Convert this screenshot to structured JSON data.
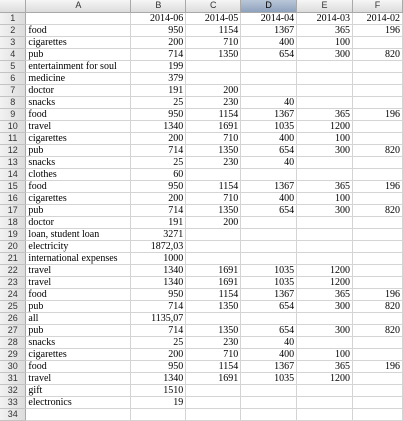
{
  "columns": [
    "A",
    "B",
    "C",
    "D",
    "E",
    "F"
  ],
  "selected_column": "D",
  "rows": [
    [
      "",
      "2014-06",
      "2014-05",
      "2014-04",
      "2014-03",
      "2014-02"
    ],
    [
      "food",
      "950",
      "1154",
      "1367",
      "365",
      "196"
    ],
    [
      "cigarettes",
      "200",
      "710",
      "400",
      "100",
      ""
    ],
    [
      "pub",
      "714",
      "1350",
      "654",
      "300",
      "820"
    ],
    [
      "entertainment for soul",
      "199",
      "",
      "",
      "",
      ""
    ],
    [
      "medicine",
      "379",
      "",
      "",
      "",
      ""
    ],
    [
      "doctor",
      "191",
      "200",
      "",
      "",
      ""
    ],
    [
      "snacks",
      "25",
      "230",
      "40",
      "",
      ""
    ],
    [
      "food",
      "950",
      "1154",
      "1367",
      "365",
      "196"
    ],
    [
      "travel",
      "1340",
      "1691",
      "1035",
      "1200",
      ""
    ],
    [
      "cigarettes",
      "200",
      "710",
      "400",
      "100",
      ""
    ],
    [
      "pub",
      "714",
      "1350",
      "654",
      "300",
      "820"
    ],
    [
      "snacks",
      "25",
      "230",
      "40",
      "",
      ""
    ],
    [
      "clothes",
      "60",
      "",
      "",
      "",
      ""
    ],
    [
      "food",
      "950",
      "1154",
      "1367",
      "365",
      "196"
    ],
    [
      "cigarettes",
      "200",
      "710",
      "400",
      "100",
      ""
    ],
    [
      "pub",
      "714",
      "1350",
      "654",
      "300",
      "820"
    ],
    [
      "doctor",
      "191",
      "200",
      "",
      "",
      ""
    ],
    [
      "loan, student loan",
      "3271",
      "",
      "",
      "",
      ""
    ],
    [
      "electricity",
      "1872,03",
      "",
      "",
      "",
      ""
    ],
    [
      "international expenses",
      "1000",
      "",
      "",
      "",
      ""
    ],
    [
      "travel",
      "1340",
      "1691",
      "1035",
      "1200",
      ""
    ],
    [
      "travel",
      "1340",
      "1691",
      "1035",
      "1200",
      ""
    ],
    [
      "food",
      "950",
      "1154",
      "1367",
      "365",
      "196"
    ],
    [
      "pub",
      "714",
      "1350",
      "654",
      "300",
      "820"
    ],
    [
      "all",
      "1135,07",
      "",
      "",
      "",
      ""
    ],
    [
      "pub",
      "714",
      "1350",
      "654",
      "300",
      "820"
    ],
    [
      "snacks",
      "25",
      "230",
      "40",
      "",
      ""
    ],
    [
      "cigarettes",
      "200",
      "710",
      "400",
      "100",
      ""
    ],
    [
      "food",
      "950",
      "1154",
      "1367",
      "365",
      "196"
    ],
    [
      "travel",
      "1340",
      "1691",
      "1035",
      "1200",
      ""
    ],
    [
      "gift",
      "1510",
      "",
      "",
      "",
      ""
    ],
    [
      "electronics",
      "19",
      "",
      "",
      "",
      ""
    ],
    [
      "",
      "",
      "",
      "",
      "",
      ""
    ]
  ]
}
